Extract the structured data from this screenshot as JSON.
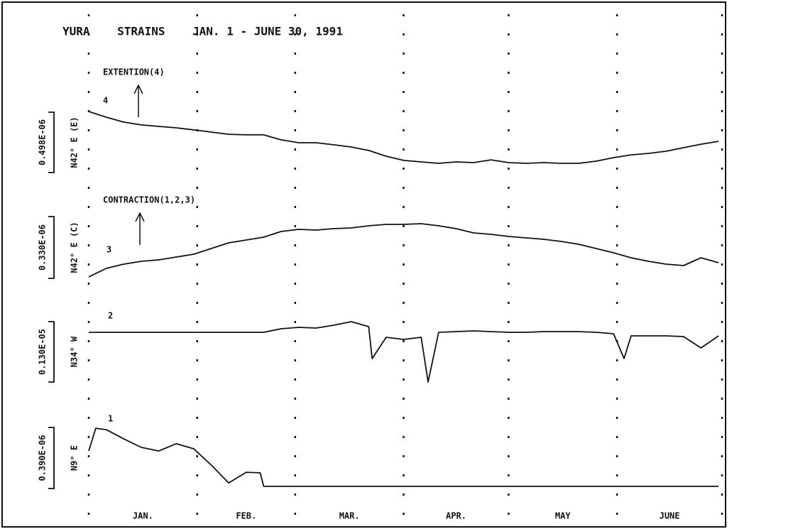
{
  "chart_data": {
    "type": "line",
    "title": "YURA    STRAINS    JAN. 1 - JUNE 30, 1991",
    "annotations": [
      "EXTENTION(4)",
      "CONTRACTION(1,2,3)"
    ],
    "categories": [
      "JAN.",
      "FEB.",
      "MAR.",
      "APR.",
      "MAY",
      "JUNE"
    ],
    "xlim": [
      0,
      181
    ],
    "xticks": [
      0,
      31,
      59,
      90,
      120,
      151,
      181
    ],
    "grid": true,
    "series": [
      {
        "name": "4",
        "label": "N42° E (E)",
        "color": "#111111",
        "scale": {
          "value": 4.98e-07,
          "label": "0.498E-06"
        },
        "x": [
          0,
          5,
          10,
          15,
          20,
          25,
          30,
          35,
          40,
          45,
          50,
          55,
          60,
          65,
          70,
          75,
          80,
          85,
          90,
          95,
          100,
          105,
          110,
          115,
          120,
          125,
          130,
          135,
          140,
          145,
          150,
          155,
          160,
          165,
          170,
          175,
          180
        ],
        "values": [
          5.04e-07,
          4.57e-07,
          4.16e-07,
          3.93e-07,
          3.81e-07,
          3.69e-07,
          3.52e-07,
          3.34e-07,
          3.16e-07,
          3.11e-07,
          3.11e-07,
          2.7e-07,
          2.46e-07,
          2.46e-07,
          2.29e-07,
          2.11e-07,
          1.82e-07,
          1.35e-07,
          1e-07,
          8.8e-08,
          7.6e-08,
          8.8e-08,
          8.2e-08,
          1.05e-07,
          8.2e-08,
          7.6e-08,
          8.2e-08,
          7.6e-08,
          7.6e-08,
          9.4e-08,
          1.23e-07,
          1.46e-07,
          1.58e-07,
          1.76e-07,
          2.05e-07,
          2.34e-07,
          2.58e-07
        ]
      },
      {
        "name": "3",
        "label": "N42° E (C)",
        "color": "#111111",
        "scale": {
          "value": 3.3e-07,
          "label": "0.330E-06"
        },
        "x": [
          0,
          5,
          10,
          15,
          20,
          25,
          30,
          35,
          40,
          45,
          50,
          55,
          60,
          65,
          70,
          75,
          80,
          85,
          90,
          95,
          100,
          105,
          110,
          115,
          120,
          125,
          130,
          135,
          140,
          145,
          150,
          155,
          160,
          165,
          170,
          175,
          180
        ],
        "values": [
          7.6e-09,
          5.31e-08,
          7.59e-08,
          9.1e-08,
          9.86e-08,
          1.138e-07,
          1.29e-07,
          1.593e-07,
          1.897e-07,
          2.048e-07,
          2.2e-07,
          2.503e-07,
          2.617e-07,
          2.579e-07,
          2.655e-07,
          2.693e-07,
          2.807e-07,
          2.883e-07,
          2.883e-07,
          2.921e-07,
          2.807e-07,
          2.655e-07,
          2.428e-07,
          2.352e-07,
          2.238e-07,
          2.162e-07,
          2.086e-07,
          1.972e-07,
          1.821e-07,
          1.593e-07,
          1.366e-07,
          1.1e-07,
          9.1e-08,
          7.59e-08,
          6.83e-08,
          1.1e-07,
          8.34e-08
        ]
      },
      {
        "name": "2",
        "label": "N34° W",
        "color": "#111111",
        "scale": {
          "value": 1.3e-06,
          "label": "0.130E-05"
        },
        "x": [
          0,
          5,
          10,
          15,
          20,
          25,
          30,
          35,
          40,
          45,
          50,
          55,
          60,
          65,
          70,
          75,
          80,
          81,
          85,
          90,
          95,
          97,
          100,
          105,
          110,
          115,
          120,
          125,
          130,
          135,
          140,
          145,
          150,
          153,
          155,
          160,
          165,
          170,
          175,
          180
        ],
        "values": [
          1.07e-06,
          1.07e-06,
          1.07e-06,
          1.07e-06,
          1.07e-06,
          1.07e-06,
          1.07e-06,
          1.07e-06,
          1.07e-06,
          1.07e-06,
          1.07e-06,
          1.147e-06,
          1.177e-06,
          1.162e-06,
          1.223e-06,
          1.3e-06,
          1.193e-06,
          5.05e-07,
          9.63e-07,
          9.17e-07,
          9.63e-07,
          0,
          1.07e-06,
          1.086e-06,
          1.101e-06,
          1.086e-06,
          1.07e-06,
          1.07e-06,
          1.086e-06,
          1.086e-06,
          1.086e-06,
          1.07e-06,
          1.04e-06,
          5.05e-07,
          9.94e-07,
          9.94e-07,
          9.94e-07,
          9.79e-07,
          7.34e-07,
          9.94e-07
        ]
      },
      {
        "name": "1",
        "label": "N9° E",
        "color": "#111111",
        "scale": {
          "value": 3.9e-07,
          "label": "0.390E-06"
        },
        "x": [
          0,
          2,
          5,
          10,
          15,
          20,
          25,
          30,
          35,
          40,
          45,
          49,
          50,
          180
        ],
        "values": [
          2.4e-07,
          3.85e-07,
          3.76e-07,
          3.17e-07,
          2.63e-07,
          2.4e-07,
          2.86e-07,
          2.54e-07,
          1.5e-07,
          3.6e-08,
          1.04e-07,
          1e-07,
          1.4e-08,
          1.4e-08
        ]
      }
    ]
  }
}
